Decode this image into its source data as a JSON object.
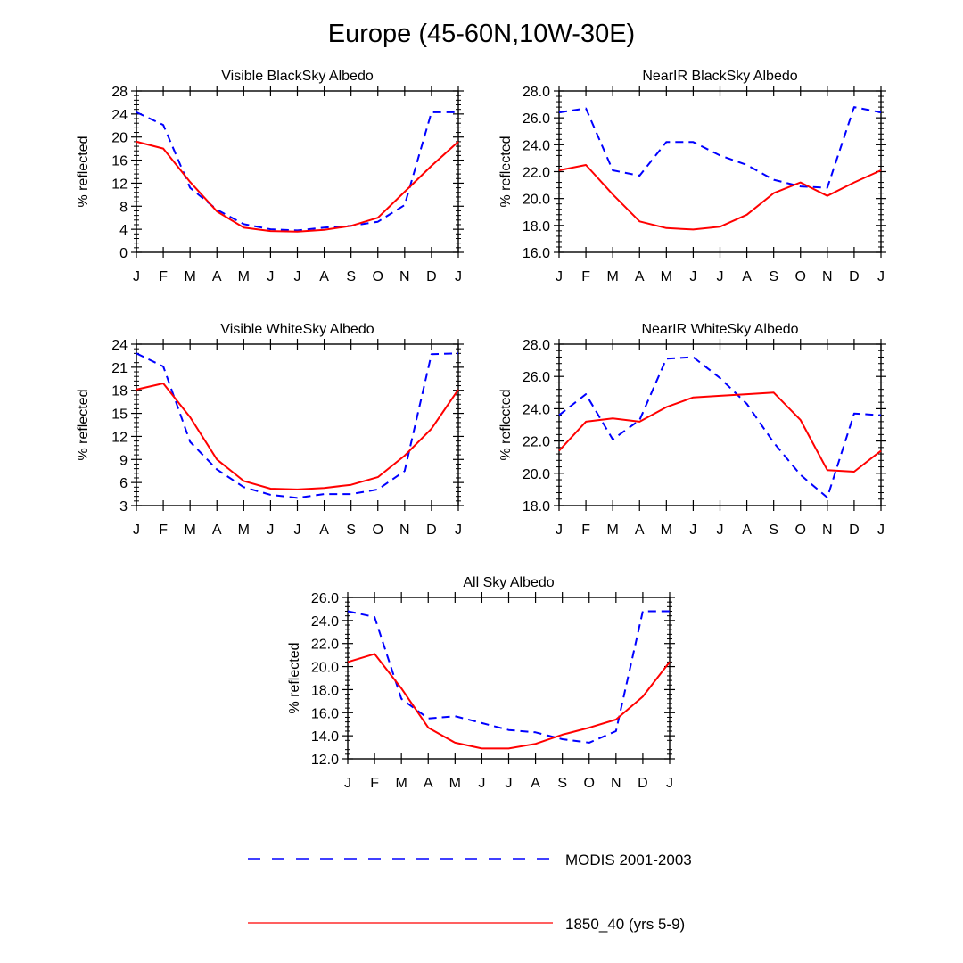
{
  "page": {
    "title": "Europe (45-60N,10W-30E)"
  },
  "colors": {
    "modis": "#0000ff",
    "model": "#ff0000",
    "axis": "#000000"
  },
  "legend": {
    "modis_label": "MODIS 2001-2003",
    "model_label": "1850_40 (yrs 5-9)"
  },
  "chart_data": [
    {
      "type": "line",
      "title": "Visible BlackSky Albedo",
      "ylabel": "% reflected",
      "xlabel": "",
      "categories": [
        "J",
        "F",
        "M",
        "A",
        "M",
        "J",
        "J",
        "A",
        "S",
        "O",
        "N",
        "D",
        "J"
      ],
      "ylim": [
        0,
        28
      ],
      "yticks": [
        "0",
        "4",
        "8",
        "12",
        "16",
        "20",
        "24",
        "28"
      ],
      "series": [
        {
          "name": "MODIS 2001-2003",
          "style": "dashed",
          "values": [
            24.3,
            22.1,
            11.2,
            7.4,
            4.9,
            4.0,
            3.8,
            4.3,
            4.6,
            5.3,
            8.2,
            24.3,
            24.3
          ]
        },
        {
          "name": "1850_40 (yrs 5-9)",
          "style": "solid",
          "values": [
            19.2,
            18.0,
            12.2,
            7.1,
            4.3,
            3.7,
            3.6,
            3.9,
            4.6,
            6.0,
            10.5,
            15.0,
            19.2
          ]
        }
      ]
    },
    {
      "type": "line",
      "title": "NearIR BlackSky Albedo",
      "ylabel": "% reflected",
      "xlabel": "",
      "categories": [
        "J",
        "F",
        "M",
        "A",
        "M",
        "J",
        "J",
        "A",
        "S",
        "O",
        "N",
        "D",
        "J"
      ],
      "ylim": [
        16,
        28
      ],
      "yticks": [
        "16.0",
        "18.0",
        "20.0",
        "22.0",
        "24.0",
        "26.0",
        "28.0"
      ],
      "series": [
        {
          "name": "MODIS 2001-2003",
          "style": "dashed",
          "values": [
            26.4,
            26.7,
            22.1,
            21.7,
            24.2,
            24.2,
            23.2,
            22.5,
            21.4,
            20.9,
            20.8,
            26.8,
            26.4
          ]
        },
        {
          "name": "1850_40 (yrs 5-9)",
          "style": "solid",
          "values": [
            22.1,
            22.5,
            20.3,
            18.3,
            17.8,
            17.7,
            17.9,
            18.8,
            20.4,
            21.2,
            20.2,
            21.2,
            22.1
          ]
        }
      ]
    },
    {
      "type": "line",
      "title": "Visible WhiteSky Albedo",
      "ylabel": "% reflected",
      "xlabel": "",
      "categories": [
        "J",
        "F",
        "M",
        "A",
        "M",
        "J",
        "J",
        "A",
        "S",
        "O",
        "N",
        "D",
        "J"
      ],
      "ylim": [
        3,
        24
      ],
      "yticks": [
        "3",
        "6",
        "9",
        "12",
        "15",
        "18",
        "21",
        "24"
      ],
      "series": [
        {
          "name": "MODIS 2001-2003",
          "style": "dashed",
          "values": [
            22.8,
            21.1,
            11.3,
            7.7,
            5.4,
            4.4,
            4.0,
            4.5,
            4.5,
            5.1,
            7.5,
            22.7,
            22.8
          ]
        },
        {
          "name": "1850_40 (yrs 5-9)",
          "style": "solid",
          "values": [
            18.1,
            18.9,
            14.5,
            9.0,
            6.2,
            5.2,
            5.1,
            5.3,
            5.7,
            6.7,
            9.5,
            13.0,
            18.1
          ]
        }
      ]
    },
    {
      "type": "line",
      "title": "NearIR WhiteSky Albedo",
      "ylabel": "% reflected",
      "xlabel": "",
      "categories": [
        "J",
        "F",
        "M",
        "A",
        "M",
        "J",
        "J",
        "A",
        "S",
        "O",
        "N",
        "D",
        "J"
      ],
      "ylim": [
        18,
        28
      ],
      "yticks": [
        "18.0",
        "20.0",
        "22.0",
        "24.0",
        "26.0",
        "28.0"
      ],
      "series": [
        {
          "name": "MODIS 2001-2003",
          "style": "dashed",
          "values": [
            23.6,
            24.9,
            22.1,
            23.3,
            27.1,
            27.2,
            25.9,
            24.3,
            21.9,
            19.9,
            18.5,
            23.7,
            23.6
          ]
        },
        {
          "name": "1850_40 (yrs 5-9)",
          "style": "solid",
          "values": [
            21.4,
            23.2,
            23.4,
            23.2,
            24.1,
            24.7,
            24.8,
            24.9,
            25.0,
            23.3,
            20.2,
            20.1,
            21.4
          ]
        }
      ]
    },
    {
      "type": "line",
      "title": "All Sky Albedo",
      "ylabel": "% reflected",
      "xlabel": "",
      "categories": [
        "J",
        "F",
        "M",
        "A",
        "M",
        "J",
        "J",
        "A",
        "S",
        "O",
        "N",
        "D",
        "J"
      ],
      "ylim": [
        12,
        26
      ],
      "yticks": [
        "12.0",
        "14.0",
        "16.0",
        "18.0",
        "20.0",
        "22.0",
        "24.0",
        "26.0"
      ],
      "series": [
        {
          "name": "MODIS 2001-2003",
          "style": "dashed",
          "values": [
            24.8,
            24.3,
            17.2,
            15.5,
            15.7,
            15.1,
            14.5,
            14.3,
            13.7,
            13.4,
            14.4,
            24.8,
            24.8
          ]
        },
        {
          "name": "1850_40 (yrs 5-9)",
          "style": "solid",
          "values": [
            20.4,
            21.1,
            18.1,
            14.7,
            13.4,
            12.9,
            12.9,
            13.3,
            14.1,
            14.7,
            15.4,
            17.4,
            20.4
          ]
        }
      ]
    }
  ]
}
